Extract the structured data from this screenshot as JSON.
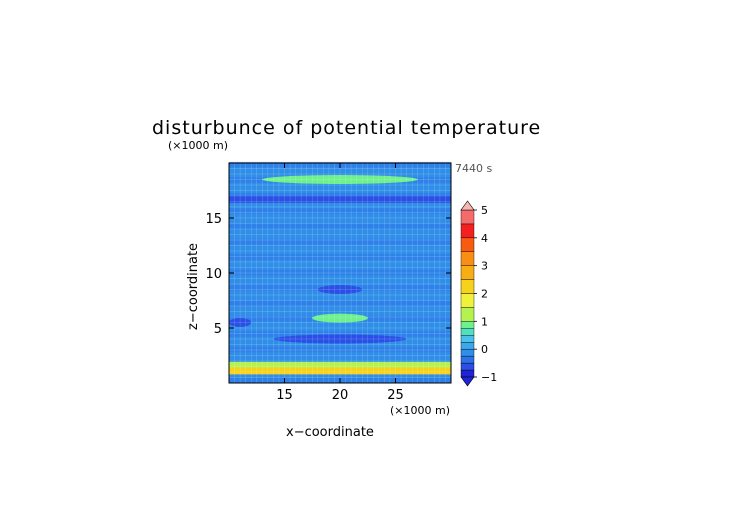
{
  "chart_data": {
    "type": "heatmap",
    "title": "disturbunce of potential temperature",
    "time_label": "7440 s",
    "xlabel": "x−coordinate",
    "ylabel": "z−coordinate",
    "x_unit": "(×1000 m)",
    "y_unit": "(×1000 m)",
    "xlim": [
      10,
      30
    ],
    "ylim": [
      0,
      20
    ],
    "x_ticks": [
      15,
      20,
      25
    ],
    "y_ticks": [
      5,
      10,
      15
    ],
    "grid": true,
    "colorbar": {
      "min": -1,
      "max": 5,
      "tick_labels": [
        "−1",
        "0",
        "1",
        "2",
        "3",
        "4",
        "5"
      ],
      "levels": [
        -1,
        -0.75,
        -0.5,
        -0.25,
        0,
        0.25,
        0.5,
        0.75,
        1,
        1.5,
        2,
        2.5,
        3,
        3.5,
        4,
        4.5,
        5
      ],
      "colors": [
        "#1f24d6",
        "#2a4ee6",
        "#2c70ea",
        "#2f8ee8",
        "#3aa8ea",
        "#4cc0e8",
        "#4fe0c0",
        "#6ef08c",
        "#b4f252",
        "#f0f23a",
        "#f6d21c",
        "#f7ad14",
        "#f88e14",
        "#f85a10",
        "#f42020",
        "#f56a6a",
        "#f8b6b0"
      ]
    },
    "bands": [
      {
        "z": 18.5,
        "value": 0.8,
        "x_from": 13,
        "x_to": 27
      },
      {
        "z": 16.7,
        "value": -0.6,
        "x_from": 10,
        "x_to": 30
      },
      {
        "z": 8.5,
        "value": -0.6,
        "x_from": 18,
        "x_to": 22
      },
      {
        "z": 5.9,
        "value": 0.8,
        "x_from": 17.5,
        "x_to": 22.5
      },
      {
        "z": 5.5,
        "value": -0.6,
        "x_from": 10,
        "x_to": 12
      },
      {
        "z": 4.0,
        "value": -0.6,
        "x_from": 14,
        "x_to": 26
      },
      {
        "z": 1.6,
        "value": 1.2,
        "x_from": 10,
        "x_to": 30
      },
      {
        "z": 1.1,
        "value": 2.0,
        "x_from": 10,
        "x_to": 30
      }
    ]
  }
}
